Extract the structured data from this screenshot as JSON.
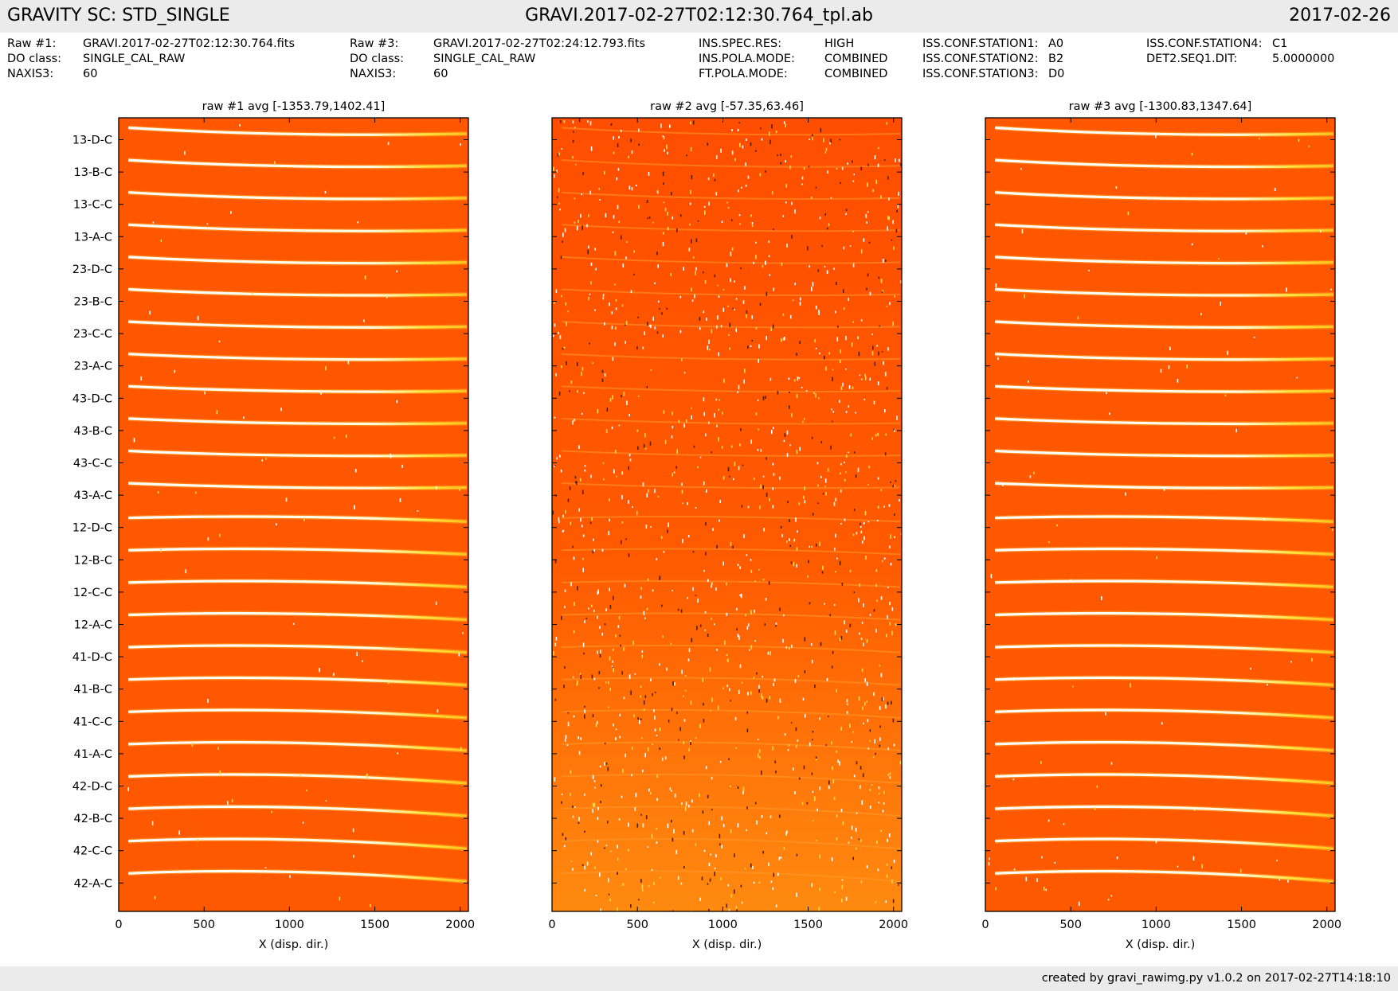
{
  "header": {
    "left": "GRAVITY SC: STD_SINGLE",
    "center": "GRAVI.2017-02-27T02:12:30.764_tpl.ab",
    "right": "2017-02-26"
  },
  "meta": {
    "col1": {
      "keys": [
        "Raw #1:",
        "DO class:",
        "NAXIS3:"
      ],
      "values": [
        "GRAVI.2017-02-27T02:12:30.764.fits",
        "SINGLE_CAL_RAW",
        "60"
      ]
    },
    "col2": {
      "keys": [
        "Raw #3:",
        "DO class:",
        "NAXIS3:"
      ],
      "values": [
        "GRAVI.2017-02-27T02:24:12.793.fits",
        "SINGLE_CAL_RAW",
        "60"
      ]
    },
    "col3": {
      "keys": [
        "INS.SPEC.RES:",
        "INS.POLA.MODE:",
        "FT.POLA.MODE:"
      ],
      "values": [
        "HIGH",
        "COMBINED",
        "COMBINED"
      ]
    },
    "col4": {
      "keys": [
        "ISS.CONF.STATION1:",
        "ISS.CONF.STATION2:",
        "ISS.CONF.STATION3:"
      ],
      "values": [
        "A0",
        "B2",
        "D0"
      ]
    },
    "col5": {
      "keys": [
        "ISS.CONF.STATION4:",
        "DET2.SEQ1.DIT:"
      ],
      "values": [
        "C1",
        "5.0000000"
      ]
    }
  },
  "footer": {
    "text": "created by gravi_rawimg.py v1.0.2 on 2017-02-27T14:18:10"
  },
  "chart_data": [
    {
      "type": "heatmap",
      "title": "raw #1 avg [-1353.79,1402.41]",
      "xlabel": "X (disp. dir.)",
      "ylabel": "",
      "xlim": [
        0,
        2048
      ],
      "xticks": [
        0,
        500,
        1000,
        1500,
        2000
      ],
      "row_labels": [
        "13-D-C",
        "13-B-C",
        "13-C-C",
        "13-A-C",
        "23-D-C",
        "23-B-C",
        "23-C-C",
        "23-A-C",
        "43-D-C",
        "43-B-C",
        "43-C-C",
        "43-A-C",
        "12-D-C",
        "12-B-C",
        "12-C-C",
        "12-A-C",
        "41-D-C",
        "41-B-C",
        "41-C-C",
        "41-A-C",
        "42-D-C",
        "42-B-C",
        "42-C-C",
        "42-A-C"
      ],
      "value_range": [
        -1353.79,
        1402.41
      ],
      "colormap": [
        "#ff5600",
        "#ffd21a",
        "#ffffff"
      ]
    },
    {
      "type": "heatmap",
      "title": "raw #2 avg [-57.35,63.46]",
      "xlabel": "X (disp. dir.)",
      "ylabel": "",
      "xlim": [
        0,
        2048
      ],
      "xticks": [
        0,
        500,
        1000,
        1500,
        2000
      ],
      "row_labels": [],
      "value_range": [
        -57.35,
        63.46
      ],
      "colormap": [
        "#ff5000",
        "#ff8a10",
        "#ffffff"
      ]
    },
    {
      "type": "heatmap",
      "title": "raw #3 avg [-1300.83,1347.64]",
      "xlabel": "X (disp. dir.)",
      "ylabel": "",
      "xlim": [
        0,
        2048
      ],
      "xticks": [
        0,
        500,
        1000,
        1500,
        2000
      ],
      "row_labels": [],
      "value_range": [
        -1300.83,
        1347.64
      ],
      "colormap": [
        "#ff5600",
        "#ffd21a",
        "#ffffff"
      ]
    }
  ]
}
